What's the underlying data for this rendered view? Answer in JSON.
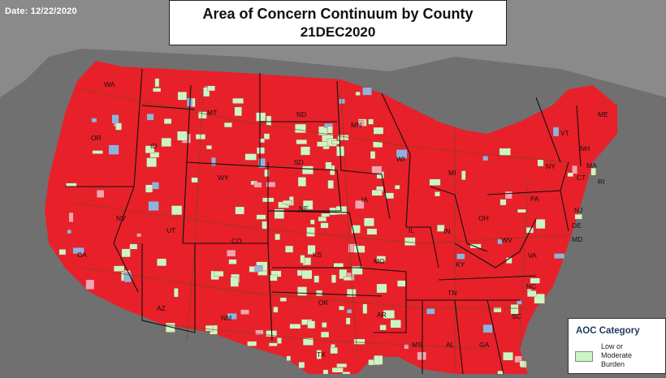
{
  "date_label": "Date: 12/22/2020",
  "title": {
    "line1": "Area of Concern Continuum by County",
    "line2": "21DEC2020"
  },
  "legend": {
    "title": "AOC Category",
    "items": [
      {
        "label": "Low or\nModerate\nBurden",
        "color": "#ccf5c4"
      }
    ]
  },
  "colors": {
    "high_burden": "#e8202a",
    "moderate_burden": "#ccf5c4",
    "other_category_blue": "#8fb3dd",
    "other_category_pink": "#f4a3b0",
    "background_land": "#8a8a8a",
    "water": "#707070",
    "state_border": "#111111",
    "roads": "#7a4a1a"
  },
  "state_labels": [
    "WA",
    "OR",
    "CA",
    "ID",
    "NV",
    "MT",
    "WY",
    "UT",
    "AZ",
    "CO",
    "NM",
    "ND",
    "SD",
    "NE",
    "KS",
    "OK",
    "TX",
    "MN",
    "IA",
    "MO",
    "AR",
    "WI",
    "IL",
    "MI",
    "IN",
    "OH",
    "KY",
    "TN",
    "MS",
    "AL",
    "GA",
    "SC",
    "NC",
    "VA",
    "WV",
    "PA",
    "NY",
    "ME",
    "VT",
    "NH",
    "MA",
    "CT",
    "RI",
    "NJ",
    "DE",
    "MD"
  ]
}
